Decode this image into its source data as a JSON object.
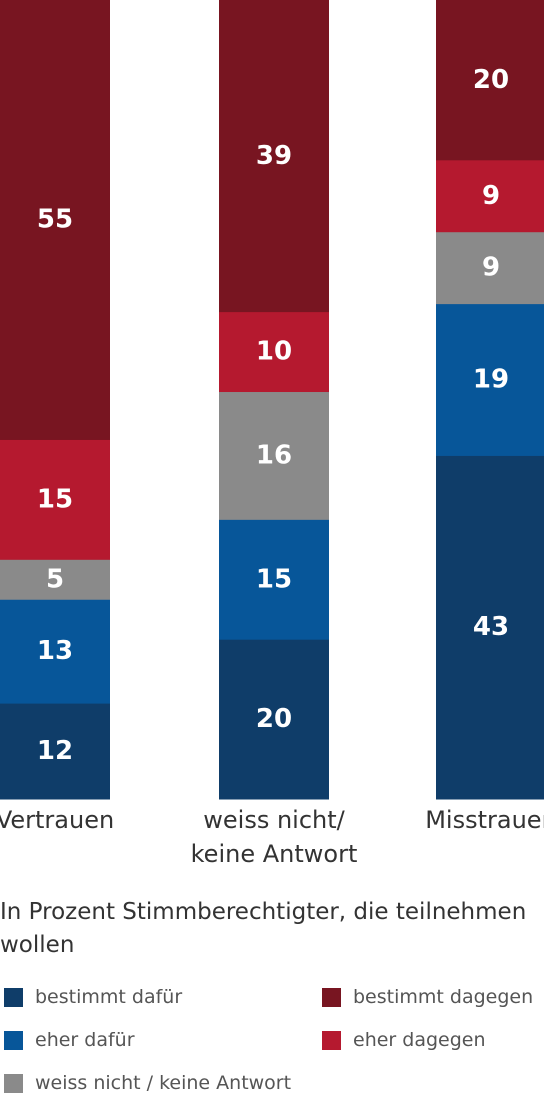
{
  "chart_data": {
    "type": "bar",
    "stacked": true,
    "categories": [
      [
        "Vertrauen"
      ],
      [
        "weiss nicht/",
        "keine Antwort"
      ],
      [
        "Misstrauen"
      ]
    ],
    "series": [
      {
        "name": "bestimmt dafür",
        "color": "#0f3d69",
        "values": [
          12,
          20,
          43
        ]
      },
      {
        "name": "eher dafür",
        "color": "#075699",
        "values": [
          13,
          15,
          19
        ]
      },
      {
        "name": "weiss nicht / keine Antwort",
        "color": "#8a8a8a",
        "values": [
          5,
          16,
          9
        ]
      },
      {
        "name": "eher dagegen",
        "color": "#b5192f",
        "values": [
          15,
          10,
          9
        ]
      },
      {
        "name": "bestimmt dagegen",
        "color": "#781521",
        "values": [
          55,
          39,
          20
        ]
      }
    ],
    "ylim": [
      0,
      100
    ],
    "note": "In Prozent Stimmberechtigter, die teilnehmen wollen",
    "legend_position": "bottom"
  }
}
